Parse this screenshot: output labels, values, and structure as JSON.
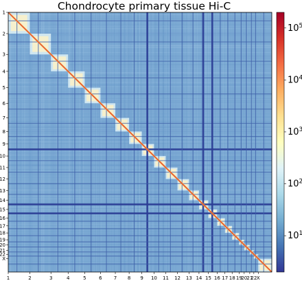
{
  "chart_data": {
    "type": "heatmap",
    "title": "Chondrocyte primary tissue Hi-C",
    "xlabel": "",
    "ylabel": "",
    "axis_scale": "chromosome",
    "chromosomes": [
      "1",
      "2",
      "3",
      "4",
      "5",
      "6",
      "7",
      "8",
      "9",
      "10",
      "11",
      "12",
      "13",
      "14",
      "15",
      "16",
      "17",
      "18",
      "19",
      "20",
      "21",
      "22",
      "X"
    ],
    "chromosome_lengths_mb": [
      249,
      243,
      198,
      191,
      182,
      171,
      159,
      146,
      141,
      135,
      135,
      133,
      115,
      107,
      102,
      90,
      83,
      80,
      59,
      64,
      47,
      51,
      156
    ],
    "colorbar": {
      "scale": "log",
      "vmin": 2,
      "vmax": 200000,
      "tick_values": [
        10,
        100,
        1000,
        10000,
        100000
      ],
      "tick_base": "10",
      "tick_exponents": [
        "1",
        "2",
        "3",
        "4",
        "5"
      ],
      "colormap": "RdYlBu_r"
    },
    "strong_gaps": [
      "9",
      "14",
      "15"
    ],
    "grid": false
  }
}
